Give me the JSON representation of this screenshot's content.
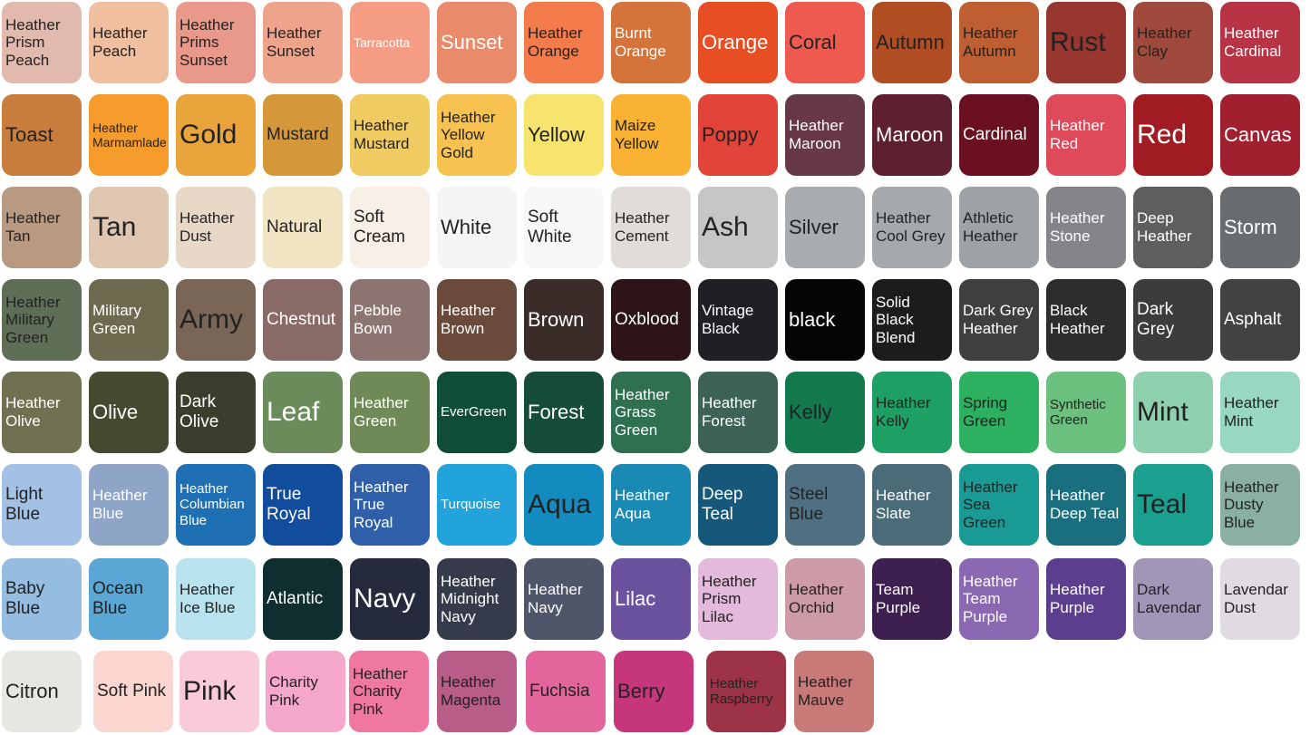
{
  "rows": [
    [
      {
        "label": "Heather Prism Peach",
        "color": "#e2b9ad",
        "text": "#222"
      },
      {
        "label": "Heather Peach",
        "color": "#efbfa0",
        "text": "#222"
      },
      {
        "label": "Heather Prims Sunset",
        "color": "#e8998a",
        "text": "#222"
      },
      {
        "label": "Heather Sunset",
        "color": "#eea38b",
        "text": "#222"
      },
      {
        "label": "Tarracotta",
        "color": "#f59c84",
        "text": "#fff"
      },
      {
        "label": "Sunset",
        "color": "#e98a6b",
        "text": "#fff"
      },
      {
        "label": "Heather Orange",
        "color": "#f47c4c",
        "text": "#222"
      },
      {
        "label": "Burnt Orange",
        "color": "#d4733a",
        "text": "#fff"
      },
      {
        "label": "Orange",
        "color": "#e84e23",
        "text": "#fff"
      },
      {
        "label": "Coral",
        "color": "#ef5a50",
        "text": "#222"
      },
      {
        "label": "Autumn",
        "color": "#b14d22",
        "text": "#222"
      },
      {
        "label": "Heather Autumn",
        "color": "#bd5e33",
        "text": "#222"
      },
      {
        "label": "Rust",
        "color": "#983630",
        "text": "#222"
      },
      {
        "label": "Heather Clay",
        "color": "#a04a3e",
        "text": "#222"
      },
      {
        "label": "Heather Cardinal",
        "color": "#b83343",
        "text": "#fff"
      }
    ],
    [
      {
        "label": "Toast",
        "color": "#c97d3c",
        "text": "#222"
      },
      {
        "label": "Heather Marmamlade",
        "color": "#f59c2c",
        "text": "#222"
      },
      {
        "label": "Gold",
        "color": "#e9a43b",
        "text": "#222"
      },
      {
        "label": "Mustard",
        "color": "#d4973a",
        "text": "#222"
      },
      {
        "label": "Heather Mustard",
        "color": "#f0cb62",
        "text": "#222"
      },
      {
        "label": "Heather Yellow Gold",
        "color": "#f7c24f",
        "text": "#222"
      },
      {
        "label": "Yellow",
        "color": "#f7e46f",
        "text": "#222"
      },
      {
        "label": "Maize Yellow",
        "color": "#f9b233",
        "text": "#222"
      },
      {
        "label": "Poppy",
        "color": "#e3443a",
        "text": "#222"
      },
      {
        "label": "Heather Maroon",
        "color": "#663848",
        "text": "#fff"
      },
      {
        "label": "Maroon",
        "color": "#5e1f30",
        "text": "#fff"
      },
      {
        "label": "Cardinal",
        "color": "#6b1020",
        "text": "#fff"
      },
      {
        "label": "Heather Red",
        "color": "#de4a5a",
        "text": "#fff"
      },
      {
        "label": "Red",
        "color": "#a01b22",
        "text": "#fff"
      },
      {
        "label": "Canvas",
        "color": "#a02030",
        "text": "#fff"
      }
    ],
    [
      {
        "label": "Heather Tan",
        "color": "#b89a82",
        "text": "#222"
      },
      {
        "label": "Tan",
        "color": "#e0c7b2",
        "text": "#222"
      },
      {
        "label": "Heather Dust",
        "color": "#e8d8c8",
        "text": "#222"
      },
      {
        "label": "Natural",
        "color": "#f1e4c3",
        "text": "#222"
      },
      {
        "label": "Soft Cream",
        "color": "#f8efe6",
        "text": "#222"
      },
      {
        "label": "White",
        "color": "#f5f5f5",
        "text": "#222"
      },
      {
        "label": "Soft White",
        "color": "#f7f7f7",
        "text": "#222"
      },
      {
        "label": "Heather Cement",
        "color": "#e0dcd7",
        "text": "#222"
      },
      {
        "label": "Ash",
        "color": "#c6c6c8",
        "text": "#222"
      },
      {
        "label": "Silver",
        "color": "#a9acaf",
        "text": "#222"
      },
      {
        "label": "Heather Cool Grey",
        "color": "#a6a9ab",
        "text": "#222"
      },
      {
        "label": "Athletic Heather",
        "color": "#9da2a6",
        "text": "#222"
      },
      {
        "label": "Heather Stone",
        "color": "#838588",
        "text": "#fff"
      },
      {
        "label": "Deep Heather",
        "color": "#5c5e5f",
        "text": "#fff"
      },
      {
        "label": "Storm",
        "color": "#696c6e",
        "text": "#fff"
      }
    ],
    [
      {
        "label": "Heather Military Green",
        "color": "#5f6e56",
        "text": "#222"
      },
      {
        "label": "Military Green",
        "color": "#6d6a50",
        "text": "#fff"
      },
      {
        "label": "Army",
        "color": "#7a6656",
        "text": "#222"
      },
      {
        "label": "Chestnut",
        "color": "#8a6a66",
        "text": "#fff"
      },
      {
        "label": "Pebble Bown",
        "color": "#8c7571",
        "text": "#fff"
      },
      {
        "label": "Heather Brown",
        "color": "#6a4a3a",
        "text": "#fff"
      },
      {
        "label": "Brown",
        "color": "#392c29",
        "text": "#fff"
      },
      {
        "label": "Oxblood",
        "color": "#2c1418",
        "text": "#fff"
      },
      {
        "label": "Vintage Black",
        "color": "#1f1f24",
        "text": "#fff"
      },
      {
        "label": "black",
        "color": "#050505",
        "text": "#fff"
      },
      {
        "label": "Solid Black Blend",
        "color": "#1c1b1d",
        "text": "#fff"
      },
      {
        "label": "Dark Grey Heather",
        "color": "#3d3f41",
        "text": "#fff"
      },
      {
        "label": "Black Heather",
        "color": "#2c2d2f",
        "text": "#fff"
      },
      {
        "label": "Dark Grey",
        "color": "#3b3c3e",
        "text": "#fff"
      },
      {
        "label": "Asphalt",
        "color": "#414244",
        "text": "#fff"
      }
    ],
    [
      {
        "label": "Heather Olive",
        "color": "#6f7150",
        "text": "#fff"
      },
      {
        "label": "Olive",
        "color": "#434a30",
        "text": "#fff"
      },
      {
        "label": "Dark Olive",
        "color": "#3d3d2e",
        "text": "#fff"
      },
      {
        "label": "Leaf",
        "color": "#6a8c5a",
        "text": "#fff"
      },
      {
        "label": "Heather Green",
        "color": "#6f8a56",
        "text": "#fff"
      },
      {
        "label": "EverGreen",
        "color": "#0f4d38",
        "text": "#fff"
      },
      {
        "label": "Forest",
        "color": "#154d3a",
        "text": "#fff"
      },
      {
        "label": "Heather Grass Green",
        "color": "#2e7050",
        "text": "#fff"
      },
      {
        "label": "Heather Forest",
        "color": "#3d6358",
        "text": "#fff"
      },
      {
        "label": "Kelly",
        "color": "#137a4e",
        "text": "#222"
      },
      {
        "label": "Heather Kelly",
        "color": "#1ea064",
        "text": "#222"
      },
      {
        "label": "Spring Green",
        "color": "#2eb061",
        "text": "#222"
      },
      {
        "label": "Synthetic Green",
        "color": "#6cc07e",
        "text": "#222"
      },
      {
        "label": "Mint",
        "color": "#8fd1af",
        "text": "#222"
      },
      {
        "label": "Heather Mint",
        "color": "#99d8c0",
        "text": "#222"
      }
    ],
    [
      {
        "label": "Light Blue",
        "color": "#a3c0e5",
        "text": "#222"
      },
      {
        "label": "Heather Blue",
        "color": "#8fa5c7",
        "text": "#fff"
      },
      {
        "label": "Heather Columbian Blue",
        "color": "#1f6fb5",
        "text": "#fff"
      },
      {
        "label": "True Royal",
        "color": "#124c9c",
        "text": "#fff"
      },
      {
        "label": "Heather True Royal",
        "color": "#2e5fa8",
        "text": "#fff"
      },
      {
        "label": "Turquoise",
        "color": "#22a3dc",
        "text": "#fff"
      },
      {
        "label": "Aqua",
        "color": "#138bbf",
        "text": "#222"
      },
      {
        "label": "Heather Aqua",
        "color": "#1a8ab5",
        "text": "#fff"
      },
      {
        "label": "Deep Teal",
        "color": "#15587a",
        "text": "#fff"
      },
      {
        "label": "Steel Blue",
        "color": "#4f7082",
        "text": "#222"
      },
      {
        "label": "Heather Slate",
        "color": "#4a6c78",
        "text": "#fff"
      },
      {
        "label": "Heather Sea Green",
        "color": "#1a9a94",
        "text": "#222"
      },
      {
        "label": "Heather Deep Teal",
        "color": "#196f7e",
        "text": "#fff"
      },
      {
        "label": "Teal",
        "color": "#1b9f8f",
        "text": "#222"
      },
      {
        "label": "Heather Dusty Blue",
        "color": "#8ab0a3",
        "text": "#222"
      }
    ],
    [
      {
        "label": "Baby Blue",
        "color": "#95bde1",
        "text": "#222"
      },
      {
        "label": "Ocean Blue",
        "color": "#5aa7d5",
        "text": "#222"
      },
      {
        "label": "Heather Ice Blue",
        "color": "#b8e3ee",
        "text": "#222"
      },
      {
        "label": "Atlantic",
        "color": "#0e2e2f",
        "text": "#fff"
      },
      {
        "label": "Navy",
        "color": "#262a3d",
        "text": "#fff"
      },
      {
        "label": "Heather Midnight Navy",
        "color": "#363b4c",
        "text": "#fff"
      },
      {
        "label": "Heather Navy",
        "color": "#4f566a",
        "text": "#fff"
      },
      {
        "label": "Lilac",
        "color": "#6b529e",
        "text": "#fff"
      },
      {
        "label": "Heather Prism Lilac",
        "color": "#e3b9dc",
        "text": "#222"
      },
      {
        "label": "Heather Orchid",
        "color": "#cd9aa8",
        "text": "#222"
      },
      {
        "label": "Team Purple",
        "color": "#3d2050",
        "text": "#fff"
      },
      {
        "label": "Heather Team Purple",
        "color": "#8a69b2",
        "text": "#fff"
      },
      {
        "label": "Heather Purple",
        "color": "#5b3f8e",
        "text": "#fff"
      },
      {
        "label": "Dark Lavendar",
        "color": "#a296b8",
        "text": "#222"
      },
      {
        "label": "Lavendar Dust",
        "color": "#e0dbe2",
        "text": "#222"
      }
    ],
    [
      {
        "label": "Citron",
        "color": "#e7e7e2",
        "text": "#222"
      },
      {
        "label": "Soft Pink",
        "color": "#fbd5d0",
        "text": "#222"
      },
      {
        "label": "Pink",
        "color": "#f9cad8",
        "text": "#222"
      },
      {
        "label": "Charity Pink",
        "color": "#f4a6cb",
        "text": "#222"
      },
      {
        "label": "Heather Charity Pink",
        "color": "#ef78a3",
        "text": "#222"
      },
      {
        "label": "Heather Magenta",
        "color": "#b85c88",
        "text": "#222"
      },
      {
        "label": "Fuchsia",
        "color": "#e2669c",
        "text": "#222"
      },
      {
        "label": "Berry",
        "color": "#c5367a",
        "text": "#222"
      },
      {
        "label": "Heather Raspberry",
        "color": "#9c3346",
        "text": "#222"
      },
      {
        "label": "Heather Mauve",
        "color": "#c77a78",
        "text": "#222"
      }
    ]
  ]
}
